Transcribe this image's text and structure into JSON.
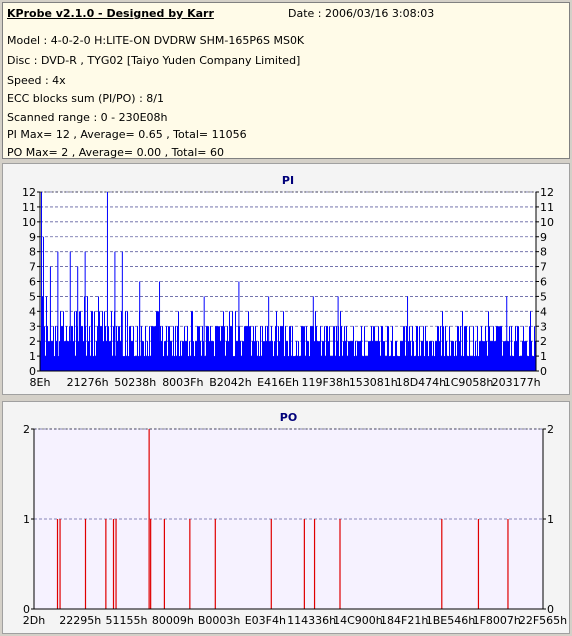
{
  "info": {
    "title": "KProbe v2.1.0 - Designed by Karr",
    "date": "Date : 2006/03/16 3:08:03",
    "lines": [
      "Model : 4-0-2-0 H:LITE-ON DVDRW SHM-165P6S MS0K",
      "Disc : DVD-R , TYG02 [Taiyo Yuden Company Limited]",
      "Speed : 4x",
      "ECC blocks sum (PI/PO) : 8/1",
      "Scanned range : 0 - 230E08h",
      "PI Max= 12 , Average= 0.65 , Total= 11056",
      "PO Max= 2 , Average= 0.00 , Total= 60"
    ]
  },
  "chart_data": [
    {
      "type": "bar",
      "title": "PI",
      "ylim": [
        0,
        12
      ],
      "yticks": [
        0,
        1,
        2,
        3,
        4,
        5,
        6,
        7,
        8,
        9,
        10,
        11,
        12
      ],
      "xtick_labels": [
        "8Eh",
        "21276h",
        "50238h",
        "8003Fh",
        "B2042h",
        "E416Eh",
        "119F38h",
        "153081h",
        "18D474h",
        "1C9058h",
        "203177h"
      ],
      "color": "#0000ff",
      "grid": true,
      "values_summary": {
        "max": 12,
        "average": 0.65,
        "total": 11056
      },
      "spikes": [
        {
          "pos": 0.002,
          "value": 12
        },
        {
          "pos": 0.006,
          "value": 9
        },
        {
          "pos": 0.02,
          "value": 7
        },
        {
          "pos": 0.035,
          "value": 8
        },
        {
          "pos": 0.06,
          "value": 8
        },
        {
          "pos": 0.075,
          "value": 7
        },
        {
          "pos": 0.09,
          "value": 8
        },
        {
          "pos": 0.135,
          "value": 12
        },
        {
          "pos": 0.15,
          "value": 8
        },
        {
          "pos": 0.165,
          "value": 8
        },
        {
          "pos": 0.2,
          "value": 6
        },
        {
          "pos": 0.24,
          "value": 6
        },
        {
          "pos": 0.33,
          "value": 5
        },
        {
          "pos": 0.4,
          "value": 6
        },
        {
          "pos": 0.46,
          "value": 5
        },
        {
          "pos": 0.55,
          "value": 5
        },
        {
          "pos": 0.6,
          "value": 5
        },
        {
          "pos": 0.74,
          "value": 5
        },
        {
          "pos": 0.94,
          "value": 5
        }
      ]
    },
    {
      "type": "bar",
      "title": "PO",
      "ylim": [
        0,
        2
      ],
      "yticks": [
        0,
        1,
        2
      ],
      "xtick_labels": [
        "2Dh",
        "22295h",
        "51155h",
        "80009h",
        "B0003h",
        "E03F4h",
        "114336h",
        "14C900h",
        "184F21h",
        "1BE546h",
        "1F8007h",
        "22F565h"
      ],
      "color": "#e00000",
      "grid": true,
      "values_summary": {
        "max": 2,
        "average": 0.0,
        "total": 60
      },
      "spikes": [
        {
          "pos": 0.045,
          "value": 1
        },
        {
          "pos": 0.05,
          "value": 1
        },
        {
          "pos": 0.1,
          "value": 1
        },
        {
          "pos": 0.14,
          "value": 1
        },
        {
          "pos": 0.155,
          "value": 1
        },
        {
          "pos": 0.16,
          "value": 1
        },
        {
          "pos": 0.225,
          "value": 2
        },
        {
          "pos": 0.228,
          "value": 1
        },
        {
          "pos": 0.255,
          "value": 1
        },
        {
          "pos": 0.305,
          "value": 1
        },
        {
          "pos": 0.355,
          "value": 1
        },
        {
          "pos": 0.465,
          "value": 1
        },
        {
          "pos": 0.53,
          "value": 1
        },
        {
          "pos": 0.55,
          "value": 1
        },
        {
          "pos": 0.6,
          "value": 1
        },
        {
          "pos": 0.8,
          "value": 1
        },
        {
          "pos": 0.872,
          "value": 1
        },
        {
          "pos": 0.93,
          "value": 1
        }
      ]
    }
  ]
}
